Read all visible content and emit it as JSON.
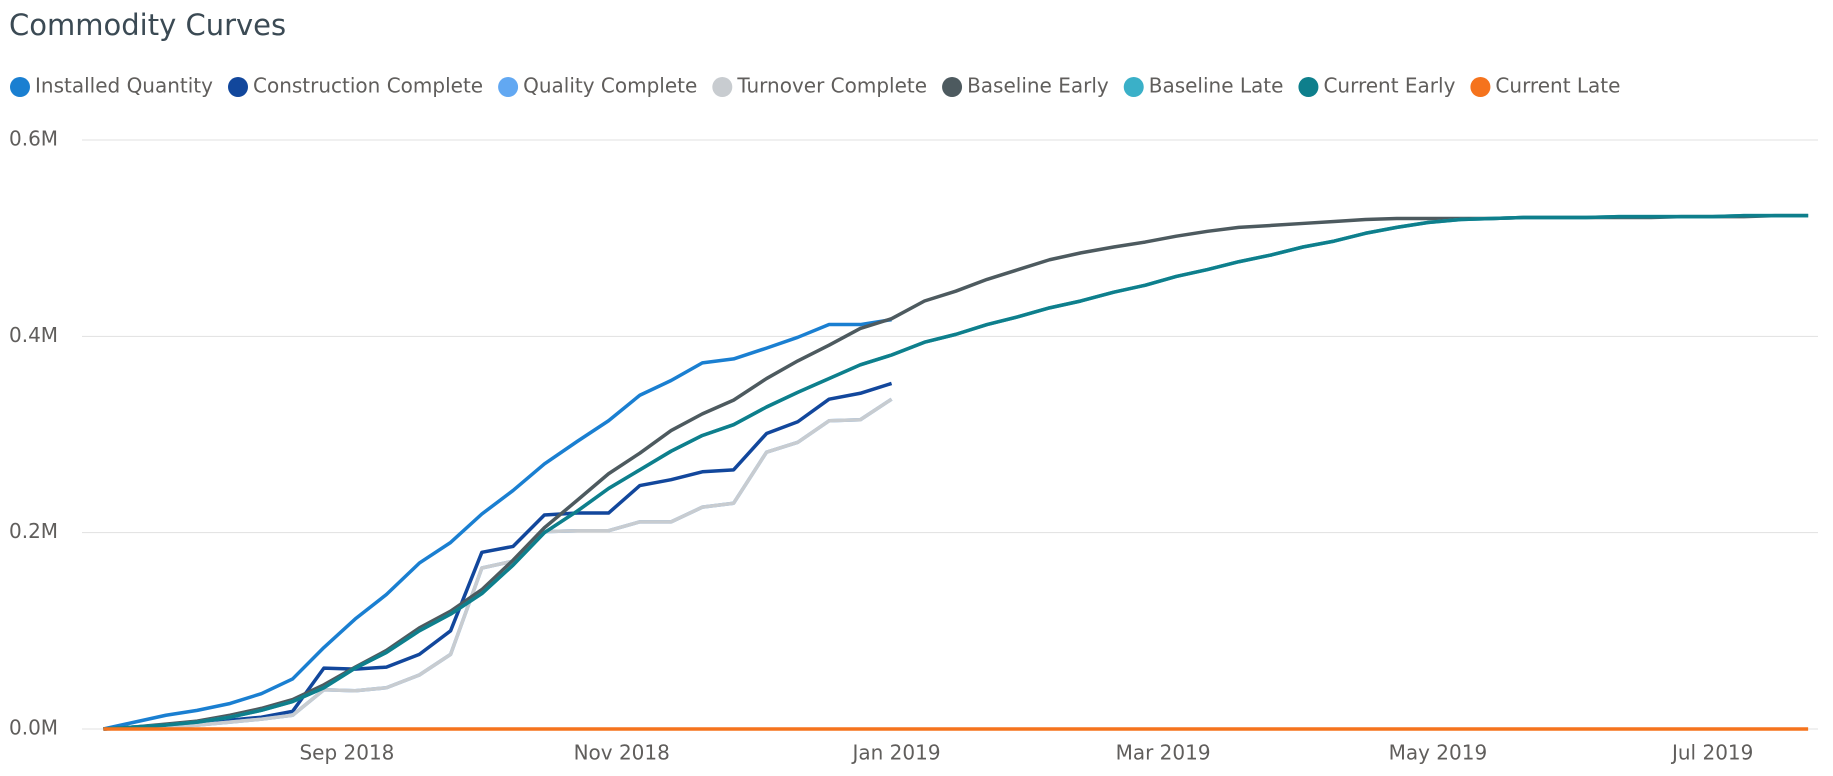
{
  "chart_data": {
    "type": "line",
    "title": "Commodity Curves",
    "x": [
      2018.518,
      2018.537,
      2018.556,
      2018.575,
      2018.595,
      2018.614,
      2018.633,
      2018.652,
      2018.671,
      2018.69,
      2018.71,
      2018.729,
      2018.748,
      2018.767,
      2018.786,
      2018.806,
      2018.825,
      2018.844,
      2018.863,
      2018.882,
      2018.901,
      2018.921,
      2018.94,
      2018.959,
      2018.978,
      2018.997,
      2019.017,
      2019.036,
      2019.055,
      2019.074,
      2019.093,
      2019.112,
      2019.132,
      2019.151,
      2019.17,
      2019.189,
      2019.208,
      2019.228,
      2019.247,
      2019.266,
      2019.285,
      2019.304,
      2019.323,
      2019.343,
      2019.362,
      2019.381,
      2019.4,
      2019.419,
      2019.439,
      2019.458,
      2019.477,
      2019.496,
      2019.515,
      2019.534,
      2019.554
    ],
    "xlim": [
      2018.505,
      2019.56
    ],
    "xticks": [
      {
        "value": 2018.666,
        "label": "Sep 2018"
      },
      {
        "value": 2018.833,
        "label": "Nov 2018"
      },
      {
        "value": 2019.0,
        "label": "Jan 2019"
      },
      {
        "value": 2019.162,
        "label": "Mar 2019"
      },
      {
        "value": 2019.329,
        "label": "May 2019"
      },
      {
        "value": 2019.496,
        "label": "Jul 2019"
      }
    ],
    "ylim": [
      0,
      600000
    ],
    "yticks": [
      {
        "value": 0,
        "label": "0.0M"
      },
      {
        "value": 200000,
        "label": "0.2M"
      },
      {
        "value": 400000,
        "label": "0.4M"
      },
      {
        "value": 600000,
        "label": "0.6M"
      }
    ],
    "grid": true,
    "legend": "top-left",
    "series": [
      {
        "name": "Installed Quantity",
        "color": "#1a7fd1",
        "values": [
          0,
          7000,
          14000,
          19000,
          26000,
          36000,
          51000,
          83000,
          112000,
          137000,
          169000,
          190000,
          219000,
          243000,
          270000,
          293000,
          314000,
          340000,
          355000,
          373000,
          377000,
          388000,
          399000,
          412000,
          412000,
          417000,
          null,
          null,
          null,
          null,
          null,
          null,
          null,
          null,
          null,
          null,
          null,
          null,
          null,
          null,
          null,
          null,
          null,
          null,
          null,
          null,
          null,
          null,
          null,
          null,
          null,
          null,
          null,
          null,
          null
        ]
      },
      {
        "name": "Construction Complete",
        "color": "#12479c",
        "values": [
          0,
          2000,
          4000,
          6000,
          9000,
          12000,
          18000,
          62000,
          61000,
          63000,
          76000,
          100000,
          180000,
          186000,
          218000,
          220000,
          220000,
          248000,
          254000,
          262000,
          264000,
          301000,
          313000,
          336000,
          342000,
          352000,
          null,
          null,
          null,
          null,
          null,
          null,
          null,
          null,
          null,
          null,
          null,
          null,
          null,
          null,
          null,
          null,
          null,
          null,
          null,
          null,
          null,
          null,
          null,
          null,
          null,
          null,
          null,
          null,
          null
        ]
      },
      {
        "name": "Quality Complete",
        "color": "#62a8f2",
        "values": [
          0,
          1000,
          2000,
          4000,
          7000,
          10000,
          14000,
          40000,
          39000,
          42000,
          55000,
          76000,
          164000,
          171000,
          201000,
          202000,
          202000,
          211000,
          211000,
          226000,
          230000,
          282000,
          292000,
          314000,
          315000,
          336000,
          null,
          null,
          null,
          null,
          null,
          null,
          null,
          null,
          null,
          null,
          null,
          null,
          null,
          null,
          null,
          null,
          null,
          null,
          null,
          null,
          null,
          null,
          null,
          null,
          null,
          null,
          null,
          null,
          null
        ]
      },
      {
        "name": "Turnover Complete",
        "color": "#c8ccd0",
        "values": [
          0,
          1000,
          2000,
          4000,
          7000,
          10000,
          14000,
          40000,
          39000,
          42000,
          55000,
          76000,
          164000,
          171000,
          201000,
          202000,
          202000,
          211000,
          211000,
          226000,
          230000,
          282000,
          292000,
          314000,
          315000,
          336000,
          null,
          null,
          null,
          null,
          null,
          null,
          null,
          null,
          null,
          null,
          null,
          null,
          null,
          null,
          null,
          null,
          null,
          null,
          null,
          null,
          null,
          null,
          null,
          null,
          null,
          null,
          null,
          null,
          null
        ]
      },
      {
        "name": "Baseline Early",
        "color": "#4d5a5f",
        "values": [
          0,
          2000,
          5000,
          8000,
          14000,
          21000,
          30000,
          45000,
          63000,
          80000,
          103000,
          120000,
          142000,
          172000,
          205000,
          233000,
          260000,
          281000,
          304000,
          321000,
          335000,
          357000,
          375000,
          391000,
          408000,
          418000,
          436000,
          446000,
          458000,
          468000,
          478000,
          485000,
          491000,
          496000,
          502000,
          507000,
          511000,
          513000,
          515000,
          517000,
          519000,
          520000,
          520000,
          520000,
          520000,
          521000,
          521000,
          521000,
          521000,
          521000,
          522000,
          522000,
          522000,
          523000,
          523000
        ]
      },
      {
        "name": "Baseline Late",
        "color": "#3ab0c8",
        "values": [
          0,
          2000,
          4000,
          7000,
          12000,
          19000,
          28000,
          42000,
          62000,
          78000,
          100000,
          117000,
          138000,
          167000,
          200000,
          222000,
          245000,
          264000,
          283000,
          299000,
          310000,
          328000,
          343000,
          357000,
          371000,
          381000,
          394000,
          402000,
          412000,
          420000,
          429000,
          436000,
          445000,
          452000,
          461000,
          468000,
          476000,
          483000,
          491000,
          497000,
          505000,
          511000,
          516000,
          519000,
          520000,
          521000,
          521000,
          521000,
          522000,
          522000,
          522000,
          522000,
          523000,
          523000,
          523000
        ]
      },
      {
        "name": "Current Early",
        "color": "#0e7f8c",
        "values": [
          0,
          2000,
          4000,
          7000,
          12000,
          19000,
          28000,
          42000,
          62000,
          78000,
          100000,
          117000,
          138000,
          167000,
          200000,
          222000,
          245000,
          264000,
          283000,
          299000,
          310000,
          328000,
          343000,
          357000,
          371000,
          381000,
          394000,
          402000,
          412000,
          420000,
          429000,
          436000,
          445000,
          452000,
          461000,
          468000,
          476000,
          483000,
          491000,
          497000,
          505000,
          511000,
          516000,
          519000,
          520000,
          521000,
          521000,
          521000,
          522000,
          522000,
          522000,
          522000,
          523000,
          523000,
          523000
        ]
      },
      {
        "name": "Current Late",
        "color": "#f5731d",
        "values": [
          0,
          0,
          0,
          0,
          0,
          0,
          0,
          0,
          0,
          0,
          0,
          0,
          0,
          0,
          0,
          0,
          0,
          0,
          0,
          0,
          0,
          0,
          0,
          0,
          0,
          0,
          0,
          0,
          0,
          0,
          0,
          0,
          0,
          0,
          0,
          0,
          0,
          0,
          0,
          0,
          0,
          0,
          0,
          0,
          0,
          0,
          0,
          0,
          0,
          0,
          0,
          0,
          0,
          0,
          0
        ]
      }
    ]
  }
}
